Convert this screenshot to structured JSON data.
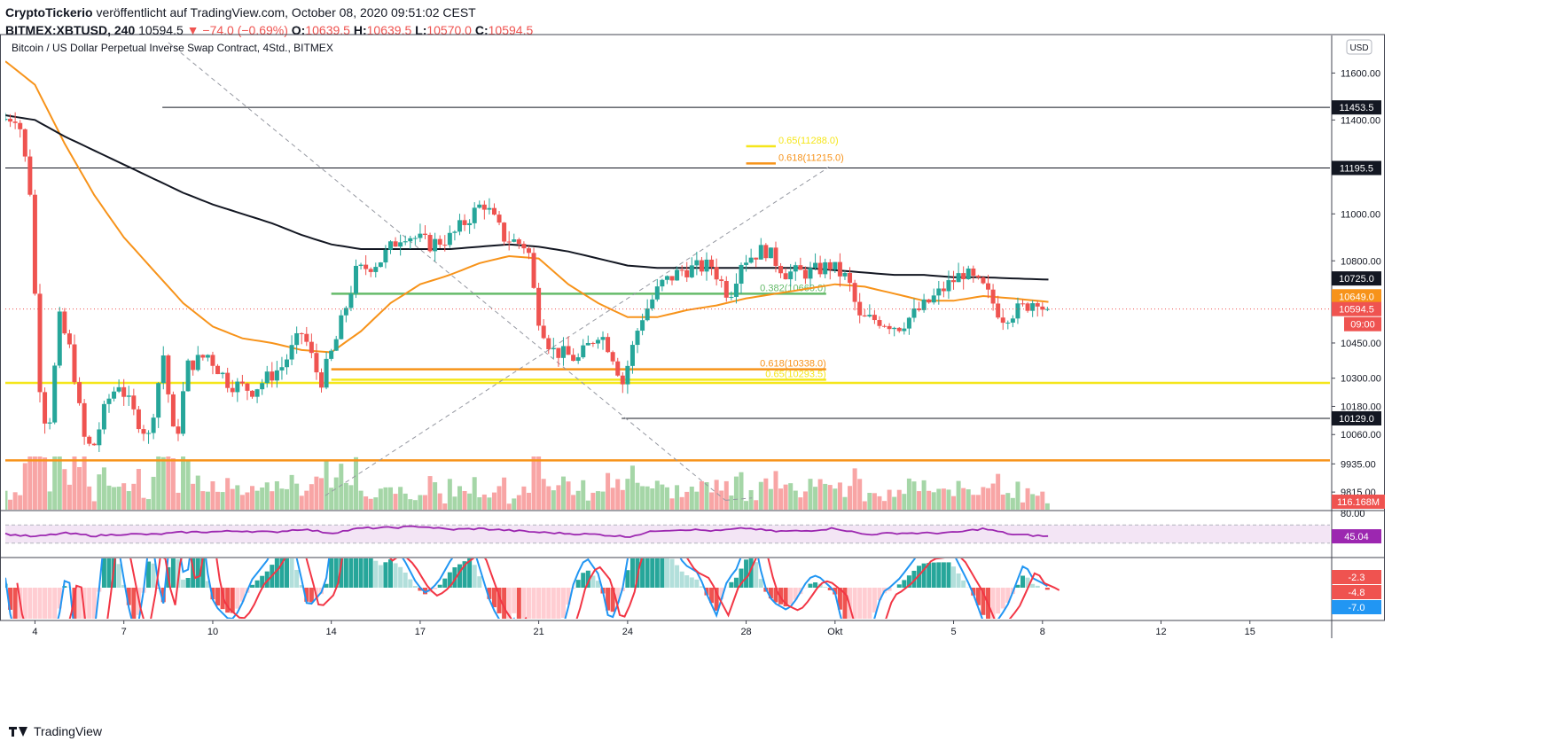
{
  "header": {
    "publisher": "CryptoTickerio",
    "published_text": "veröffentlicht auf TradingView.com, October 08, 2020 09:51:02 CEST",
    "symbol": "BITMEX:XBTUSD, 240",
    "last": "10594.5",
    "change": "−74.0 (−0.69%)",
    "o_label": "O:",
    "o": "10639.5",
    "h_label": "H:",
    "h": "10639.5",
    "l_label": "L:",
    "l": "10570.0",
    "c_label": "C:",
    "c": "10594.5"
  },
  "footer": {
    "brand": "TradingView"
  },
  "colors": {
    "up": "#26a69a",
    "down": "#ef5350",
    "ma_short": "#f7931a",
    "ma_long": "#131722",
    "fib_yellow": "#f5e61b",
    "fib_orange": "#f7931a",
    "fib_green": "#66bb6a",
    "rsi_line": "#9c27b0",
    "rsi_band": "#f3e5f5",
    "macd_line": "#2196f3",
    "signal_line": "#f23645"
  },
  "chart_data": {
    "type": "candlestick",
    "title": "Bitcoin / US Dollar Perpetual Inverse Swap Contract, 4Std., BITMEX",
    "currency": "USD",
    "price_axis_ticks": [
      11600,
      11400,
      11195.5,
      11000,
      10800,
      10725,
      10649,
      10594.5,
      10450,
      10300,
      10180,
      10129,
      10060,
      9935,
      9815
    ],
    "price_range": [
      9740,
      11760
    ],
    "x_tick_labels": [
      "4",
      "7",
      "10",
      "14",
      "17",
      "21",
      "24",
      "28",
      "Okt",
      "5",
      "8",
      "12",
      "15"
    ],
    "x_tick_days": [
      4,
      7,
      10,
      14,
      17,
      21,
      24,
      28,
      31,
      35,
      38,
      42,
      45
    ],
    "day_range": [
      3.0,
      47.7
    ],
    "candles_per_day": 6,
    "price_path": [
      [
        3.0,
        11400
      ],
      [
        3.6,
        11420
      ],
      [
        4.0,
        11100
      ],
      [
        4.3,
        10300
      ],
      [
        4.6,
        10050
      ],
      [
        5.0,
        10550
      ],
      [
        5.4,
        10400
      ],
      [
        5.8,
        10050
      ],
      [
        6.1,
        9990
      ],
      [
        6.6,
        10200
      ],
      [
        7.0,
        10280
      ],
      [
        7.5,
        10150
      ],
      [
        8.0,
        10050
      ],
      [
        8.5,
        10400
      ],
      [
        8.9,
        10000
      ],
      [
        9.3,
        10350
      ],
      [
        10.0,
        10400
      ],
      [
        10.7,
        10280
      ],
      [
        11.5,
        10250
      ],
      [
        12.5,
        10350
      ],
      [
        13.2,
        10500
      ],
      [
        13.8,
        10280
      ],
      [
        14.3,
        10450
      ],
      [
        15.0,
        10750
      ],
      [
        15.8,
        10800
      ],
      [
        16.6,
        10920
      ],
      [
        17.5,
        10870
      ],
      [
        18.2,
        10900
      ],
      [
        19.3,
        11050
      ],
      [
        20.0,
        10900
      ],
      [
        20.8,
        10860
      ],
      [
        21.1,
        10580
      ],
      [
        21.6,
        10420
      ],
      [
        22.5,
        10380
      ],
      [
        23.2,
        10500
      ],
      [
        23.6,
        10420
      ],
      [
        24.0,
        10280
      ],
      [
        24.6,
        10550
      ],
      [
        25.3,
        10700
      ],
      [
        26.0,
        10760
      ],
      [
        27.0,
        10780
      ],
      [
        27.6,
        10650
      ],
      [
        28.0,
        10800
      ],
      [
        28.8,
        10850
      ],
      [
        29.5,
        10750
      ],
      [
        30.3,
        10750
      ],
      [
        31.0,
        10780
      ],
      [
        31.6,
        10720
      ],
      [
        32.0,
        10550
      ],
      [
        32.6,
        10550
      ],
      [
        33.3,
        10520
      ],
      [
        34.3,
        10620
      ],
      [
        35.0,
        10700
      ],
      [
        35.5,
        10750
      ],
      [
        36.2,
        10680
      ],
      [
        36.8,
        10560
      ],
      [
        37.5,
        10600
      ],
      [
        38.0,
        10640
      ],
      [
        38.2,
        10594.5
      ]
    ],
    "last_close": 10594.5,
    "last_close_countdown": "09:00",
    "moving_averages": [
      {
        "length_hint": "short",
        "points": [
          [
            3.0,
            11650
          ],
          [
            4.0,
            11550
          ],
          [
            5.0,
            11300
          ],
          [
            6.0,
            11080
          ],
          [
            7.0,
            10900
          ],
          [
            8.0,
            10760
          ],
          [
            9.0,
            10620
          ],
          [
            10.0,
            10520
          ],
          [
            11.0,
            10470
          ],
          [
            12.0,
            10450
          ],
          [
            13.0,
            10420
          ],
          [
            14.0,
            10410
          ],
          [
            15.0,
            10500
          ],
          [
            16.0,
            10620
          ],
          [
            17.0,
            10700
          ],
          [
            18.0,
            10740
          ],
          [
            19.0,
            10790
          ],
          [
            20.0,
            10820
          ],
          [
            21.0,
            10810
          ],
          [
            22.0,
            10700
          ],
          [
            23.0,
            10620
          ],
          [
            24.0,
            10560
          ],
          [
            25.0,
            10560
          ],
          [
            26.0,
            10590
          ],
          [
            27.0,
            10610
          ],
          [
            28.0,
            10640
          ],
          [
            29.0,
            10660
          ],
          [
            30.0,
            10680
          ],
          [
            31.0,
            10700
          ],
          [
            32.0,
            10690
          ],
          [
            33.0,
            10660
          ],
          [
            34.0,
            10630
          ],
          [
            35.0,
            10630
          ],
          [
            36.0,
            10650
          ],
          [
            37.0,
            10640
          ],
          [
            38.2,
            10625
          ]
        ]
      },
      {
        "length_hint": "long",
        "points": [
          [
            3.0,
            11420
          ],
          [
            4.0,
            11400
          ],
          [
            5.0,
            11330
          ],
          [
            6.0,
            11270
          ],
          [
            7.0,
            11210
          ],
          [
            8.0,
            11150
          ],
          [
            9.0,
            11090
          ],
          [
            10.0,
            11040
          ],
          [
            11.0,
            11000
          ],
          [
            12.0,
            10960
          ],
          [
            13.0,
            10910
          ],
          [
            14.0,
            10870
          ],
          [
            15.0,
            10850
          ],
          [
            16.0,
            10850
          ],
          [
            17.0,
            10850
          ],
          [
            18.0,
            10850
          ],
          [
            19.0,
            10860
          ],
          [
            20.0,
            10870
          ],
          [
            21.0,
            10860
          ],
          [
            22.0,
            10840
          ],
          [
            23.0,
            10810
          ],
          [
            24.0,
            10780
          ],
          [
            25.0,
            10770
          ],
          [
            26.0,
            10770
          ],
          [
            27.0,
            10770
          ],
          [
            28.0,
            10770
          ],
          [
            29.0,
            10770
          ],
          [
            30.0,
            10770
          ],
          [
            31.0,
            10760
          ],
          [
            32.0,
            10750
          ],
          [
            33.0,
            10740
          ],
          [
            34.0,
            10740
          ],
          [
            35.0,
            10730
          ],
          [
            36.0,
            10730
          ],
          [
            37.0,
            10725
          ],
          [
            38.2,
            10720
          ]
        ]
      }
    ],
    "horizontal_lines": [
      {
        "price": 11453.5,
        "label": "11453.5",
        "color": "#131722",
        "start_day": 8.3
      },
      {
        "price": 11195.5,
        "label": "11195.5",
        "color": "#131722",
        "start_day": 3.0
      },
      {
        "price": 10129.0,
        "label": "10129.0",
        "color": "#131722",
        "start_day": 23.8
      },
      {
        "price": 10280.0,
        "label": "",
        "color": "#f5e61b",
        "start_day": 3.0
      },
      {
        "price": 9950.0,
        "label": "",
        "color": "#f7931a",
        "start_day": 3.0
      }
    ],
    "price_labels": [
      {
        "price": 10725.0,
        "label": "10725.0",
        "bg": "#131722"
      },
      {
        "price": 10649.0,
        "label": "10649.0",
        "bg": "#f7931a"
      },
      {
        "price": 10594.5,
        "label": "10594.5",
        "bg": "#ef5350"
      }
    ],
    "fib_levels": [
      {
        "price": 11288,
        "label": "0.65(11288.0)",
        "color": "#f5e61b",
        "start_day": 28.0,
        "end_day": 29.0
      },
      {
        "price": 11215,
        "label": "0.618(11215.0)",
        "color": "#f7931a",
        "start_day": 28.0,
        "end_day": 29.0
      },
      {
        "price": 10660,
        "label": "0.382(10660.0)",
        "color": "#66bb6a",
        "start_day": 14.0,
        "end_day": 30.7
      },
      {
        "price": 10338,
        "label": "0.618(10338.0)",
        "color": "#f7931a",
        "start_day": 14.0,
        "end_day": 30.7
      },
      {
        "price": 10293.5,
        "label": "0.65(10293.5)",
        "color": "#f5e61b",
        "start_day": 14.0,
        "end_day": 30.7
      }
    ],
    "dashed_lines": [
      {
        "from": [
          8.5,
          11730
        ],
        "to": [
          27.3,
          9780
        ]
      },
      {
        "from": [
          27.3,
          9780
        ],
        "to": [
          28.2,
          9790
        ]
      },
      {
        "from": [
          13.8,
          9800
        ],
        "to": [
          30.8,
          11200
        ]
      }
    ],
    "volume": {
      "last_value": "116.168M"
    },
    "rsi": {
      "level": "80.00",
      "last_value": "45.04",
      "range": [
        0,
        100
      ],
      "band": [
        30,
        70
      ],
      "series": [
        [
          3.0,
          50
        ],
        [
          4.0,
          44
        ],
        [
          5.0,
          52
        ],
        [
          6.0,
          46
        ],
        [
          7.0,
          50
        ],
        [
          8.0,
          49
        ],
        [
          9.0,
          54
        ],
        [
          10.0,
          55
        ],
        [
          11.0,
          57
        ],
        [
          12.0,
          54
        ],
        [
          13.0,
          61
        ],
        [
          14.0,
          52
        ],
        [
          15.0,
          63
        ],
        [
          16.0,
          64
        ],
        [
          17.0,
          67
        ],
        [
          18.0,
          60
        ],
        [
          19.0,
          62
        ],
        [
          20.0,
          58
        ],
        [
          21.0,
          54
        ],
        [
          22.0,
          51
        ],
        [
          23.0,
          49
        ],
        [
          24.0,
          44
        ],
        [
          25.0,
          58
        ],
        [
          26.0,
          60
        ],
        [
          27.0,
          57
        ],
        [
          28.0,
          63
        ],
        [
          29.0,
          56
        ],
        [
          30.0,
          57
        ],
        [
          31.0,
          63
        ],
        [
          32.0,
          49
        ],
        [
          33.0,
          52
        ],
        [
          34.0,
          52
        ],
        [
          35.0,
          53
        ],
        [
          36.0,
          62
        ],
        [
          37.0,
          49
        ],
        [
          38.2,
          45
        ]
      ]
    },
    "macd": {
      "values": [
        "-2.3",
        "-4.8",
        "-7.0"
      ]
    }
  }
}
